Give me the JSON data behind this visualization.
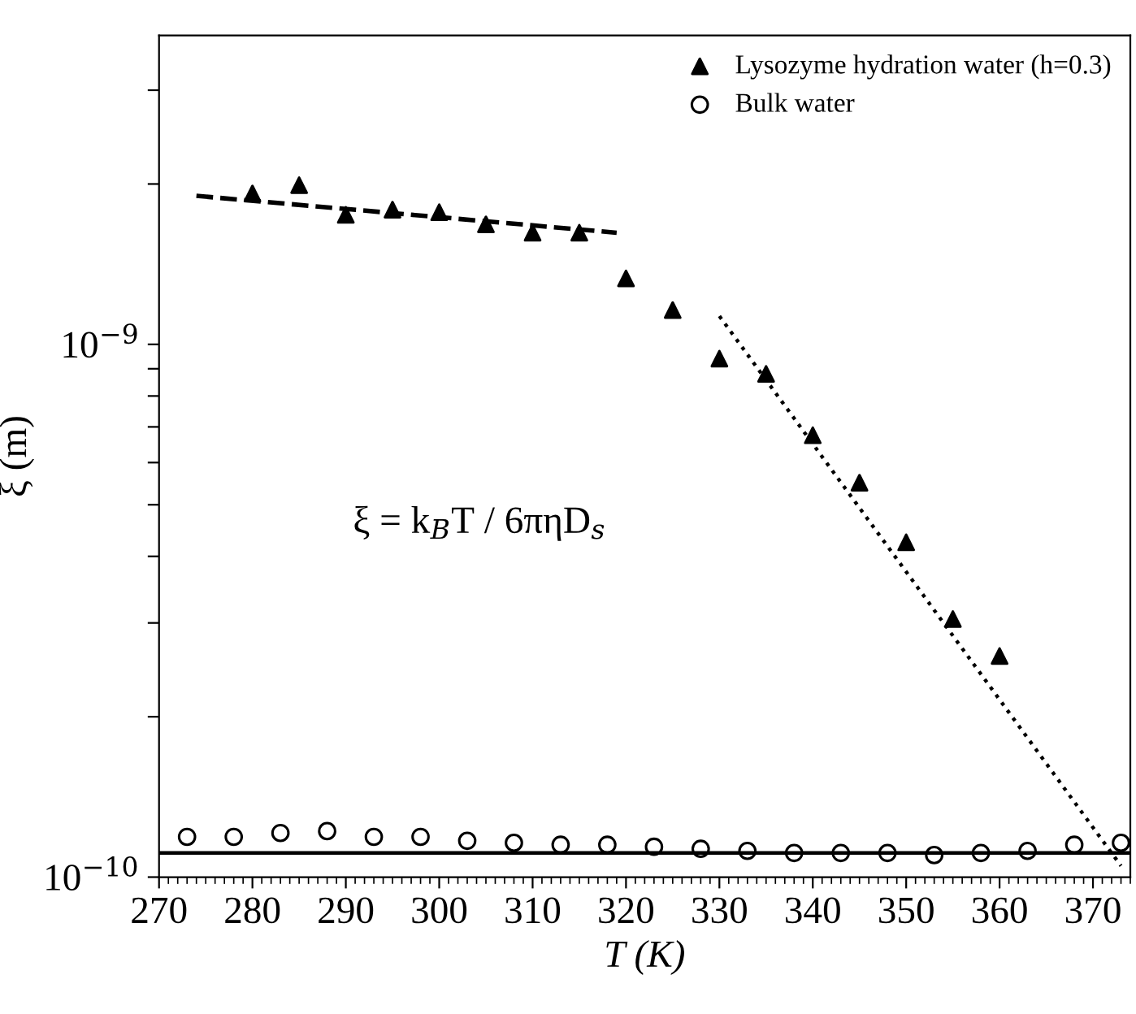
{
  "chart_data": {
    "type": "scatter",
    "xlabel": "T (K)",
    "ylabel": "ξ (m)",
    "log": "y",
    "xlim": [
      270,
      374
    ],
    "xticks": [
      270,
      280,
      290,
      300,
      310,
      320,
      330,
      340,
      350,
      360,
      370
    ],
    "ylim": [
      1e-10,
      3.8e-09
    ],
    "yticks": [
      {
        "value": 1e-10,
        "label": "10$^{−10}$"
      },
      {
        "value": 2e-10,
        "label": null
      },
      {
        "value": 3e-10,
        "label": null
      },
      {
        "value": 4e-10,
        "label": null
      },
      {
        "value": 5e-10,
        "label": null
      },
      {
        "value": 6e-10,
        "label": null
      },
      {
        "value": 7e-10,
        "label": null
      },
      {
        "value": 8e-10,
        "label": null
      },
      {
        "value": 9e-10,
        "label": null
      },
      {
        "value": 1e-09,
        "label": "10$^{−9}$"
      },
      {
        "value": 2e-09,
        "label": null
      },
      {
        "value": 3e-09,
        "label": null
      }
    ],
    "grid": false,
    "legend": "top right",
    "annotations": [
      "ξ = k$_{B}$T / 6πηD$_{s}$"
    ],
    "series": [
      {
        "name": "Lysozyme hydration water (h=0.3)",
        "marker": "triangle",
        "color": "#000000",
        "x": [
          280,
          285,
          290,
          295,
          300,
          305,
          310,
          315,
          320,
          325,
          330,
          335,
          340,
          345,
          350,
          355,
          360
        ],
        "values": [
          1.92e-09,
          1.99e-09,
          1.75e-09,
          1.79e-09,
          1.77e-09,
          1.68e-09,
          1.62e-09,
          1.62e-09,
          1.33e-09,
          1.16e-09,
          9.4e-10,
          8.8e-10,
          6.75e-10,
          5.5e-10,
          4.25e-10,
          3.05e-10,
          2.6e-10
        ]
      },
      {
        "name": "Bulk water",
        "marker": "circle",
        "color": "#000000",
        "x": [
          273,
          278,
          283,
          288,
          293,
          298,
          303,
          308,
          313,
          318,
          323,
          328,
          333,
          338,
          343,
          348,
          353,
          358,
          363,
          368,
          373
        ],
        "values": [
          1.19e-10,
          1.19e-10,
          1.21e-10,
          1.22e-10,
          1.19e-10,
          1.19e-10,
          1.17e-10,
          1.16e-10,
          1.15e-10,
          1.15e-10,
          1.14e-10,
          1.13e-10,
          1.12e-10,
          1.11e-10,
          1.11e-10,
          1.11e-10,
          1.1e-10,
          1.11e-10,
          1.12e-10,
          1.15e-10,
          1.16e-10
        ]
      },
      {
        "type": "line",
        "line_style": "dashed",
        "color": "#000000",
        "x": [
          274,
          319
        ],
        "values": [
          1.9e-09,
          1.62e-09
        ]
      },
      {
        "type": "line",
        "line_style": "dotted",
        "color": "#000000",
        "x": [
          330,
          373
        ],
        "values": [
          1.13e-09,
          1.05e-10
        ]
      },
      {
        "type": "line",
        "line_style": "solid",
        "color": "#000000",
        "x": [
          270,
          374
        ],
        "values": [
          1.11e-10,
          1.11e-10
        ]
      }
    ]
  }
}
